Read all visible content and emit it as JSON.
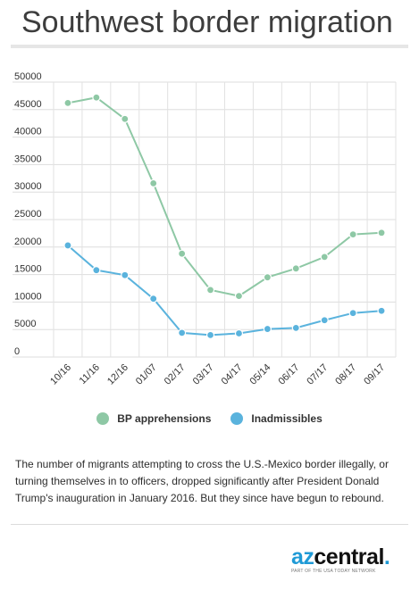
{
  "header": {
    "title": "Southwest border migration"
  },
  "chart_data": {
    "type": "line",
    "title": "Southwest border migration",
    "xlabel": "",
    "ylabel": "",
    "categories": [
      "10/16",
      "11/16",
      "12/16",
      "01/07",
      "02/17",
      "03/17",
      "04/17",
      "05/14",
      "06/17",
      "07/17",
      "08/17",
      "09/17"
    ],
    "ylim": [
      0,
      50000
    ],
    "yticks": [
      0,
      5000,
      10000,
      15000,
      20000,
      25000,
      30000,
      35000,
      40000,
      45000,
      50000
    ],
    "grid": true,
    "legend": "bottom",
    "series": [
      {
        "name": "BP apprehensions",
        "color": "#8ec8a5",
        "values": [
          46200,
          47200,
          43300,
          31600,
          18800,
          12200,
          11100,
          14500,
          16100,
          18200,
          22300,
          22600
        ]
      },
      {
        "name": "Inadmissibles",
        "color": "#5ab3dd",
        "values": [
          20300,
          15800,
          14900,
          10600,
          4400,
          4000,
          4300,
          5100,
          5300,
          6700,
          8000,
          8400
        ]
      }
    ]
  },
  "caption": "The number of migrants attempting to cross the U.S.-Mexico border illegally, or turning themselves in to officers, dropped significantly after President Donald Trump's inauguration in January 2016. But they since have begun to rebound.",
  "logo": {
    "az": "az",
    "central": "central",
    "dot": ".",
    "tagline": "PART OF THE USA TODAY NETWORK"
  }
}
